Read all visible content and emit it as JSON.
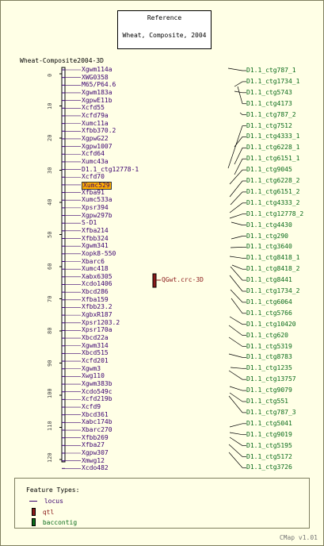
{
  "reference": {
    "title": "Reference",
    "dataset": "Wheat, Composite, 2004"
  },
  "map_title": "Wheat-Composite2004-3D",
  "axis_ticks": [
    "0",
    "10",
    "20",
    "30",
    "40",
    "50",
    "60",
    "70",
    "80",
    "90",
    "100",
    "110",
    "120"
  ],
  "loci": [
    "Xgwm114a",
    "XWG0358",
    "M65/P64.6",
    "Xgwm183a",
    "XgpwE11b",
    "Xcfd55",
    "Xcfd79a",
    "Xumc11a",
    "Xfbb370.2",
    "XgpwG22",
    "Xgpw1007",
    "Xcfd64",
    "Xumc43a",
    "D1.1_ctg12778-1",
    "Xcfd70",
    "Xumc529",
    "Xfba91",
    "Xumc533a",
    "Xpsr394",
    "Xgpw297b",
    "S-D1",
    "Xfba214",
    "Xfbb324",
    "Xgwm341",
    "Xopk8-550",
    "Xbarc6",
    "Xumc418",
    "Xabx6305",
    "Xcdo1406",
    "Xbcd286",
    "Xfba159",
    "Xfbb23.2",
    "XgbxR187",
    "Xpsr1203.2",
    "Xpsr170a",
    "Xbcd22a",
    "Xgwm314",
    "Xbcd515",
    "Xcfd201",
    "Xgwm3",
    "Xwg110",
    "Xgwm383b",
    "Xcdo549c",
    "Xcfd219b",
    "Xcfd9",
    "Xbcd361",
    "Xabc174b",
    "Xbarc270",
    "Xfbb269",
    "Xfba27",
    "Xgpw307",
    "Xmwg12",
    "Xcdo482"
  ],
  "highlighted_locus": "Xumc529",
  "qtl": "QGwt.crc-3D",
  "contigs": [
    "D1.1_ctg787_1",
    "D1.1_ctg1734_1",
    "D1.1_ctg5743",
    "D1.1_ctg4173",
    "D1.1_ctg787_2",
    "D1.1_ctg7512",
    "D1.1_ctg4333_1",
    "D1.1_ctg6228_1",
    "D1.1_ctg6151_1",
    "D1.1_ctg9045",
    "D1.1_ctg6228_2",
    "D1.1_ctg6151_2",
    "D1.1_ctg4333_2",
    "D1.1_ctg12778_2",
    "D1.1_ctg4430",
    "D1.1_ctg290",
    "D1.1_ctg3640",
    "D1.1_ctg8418_1",
    "D1.1_ctg8418_2",
    "D1.1_ctg8441",
    "D1.1_ctg1734_2",
    "D1.1_ctg6064",
    "D1.1_ctg5766",
    "D1.1_ctg10420",
    "D1.1_ctg620",
    "D1.1_ctg5319",
    "D1.1_ctg8783",
    "D1.1_ctg1235",
    "D1.1_ctg13757",
    "D1.1_ctg9079",
    "D1.1_ctg551",
    "D1.1_ctg787_3",
    "D1.1_ctg5041",
    "D1.1_ctg9019",
    "D1.1_ctg5195",
    "D1.1_ctg5172",
    "D1.1_ctg3726"
  ],
  "legend": {
    "title": "Feature Types:",
    "locus": "locus",
    "qtl": "qtl",
    "baccontig": "baccontig"
  },
  "footer": "CMap v1.01",
  "colors": {
    "locus": "#3a006f",
    "qtl": "#8b1a1a",
    "contig": "#0a6b1a",
    "highlight": "#ffb000"
  }
}
